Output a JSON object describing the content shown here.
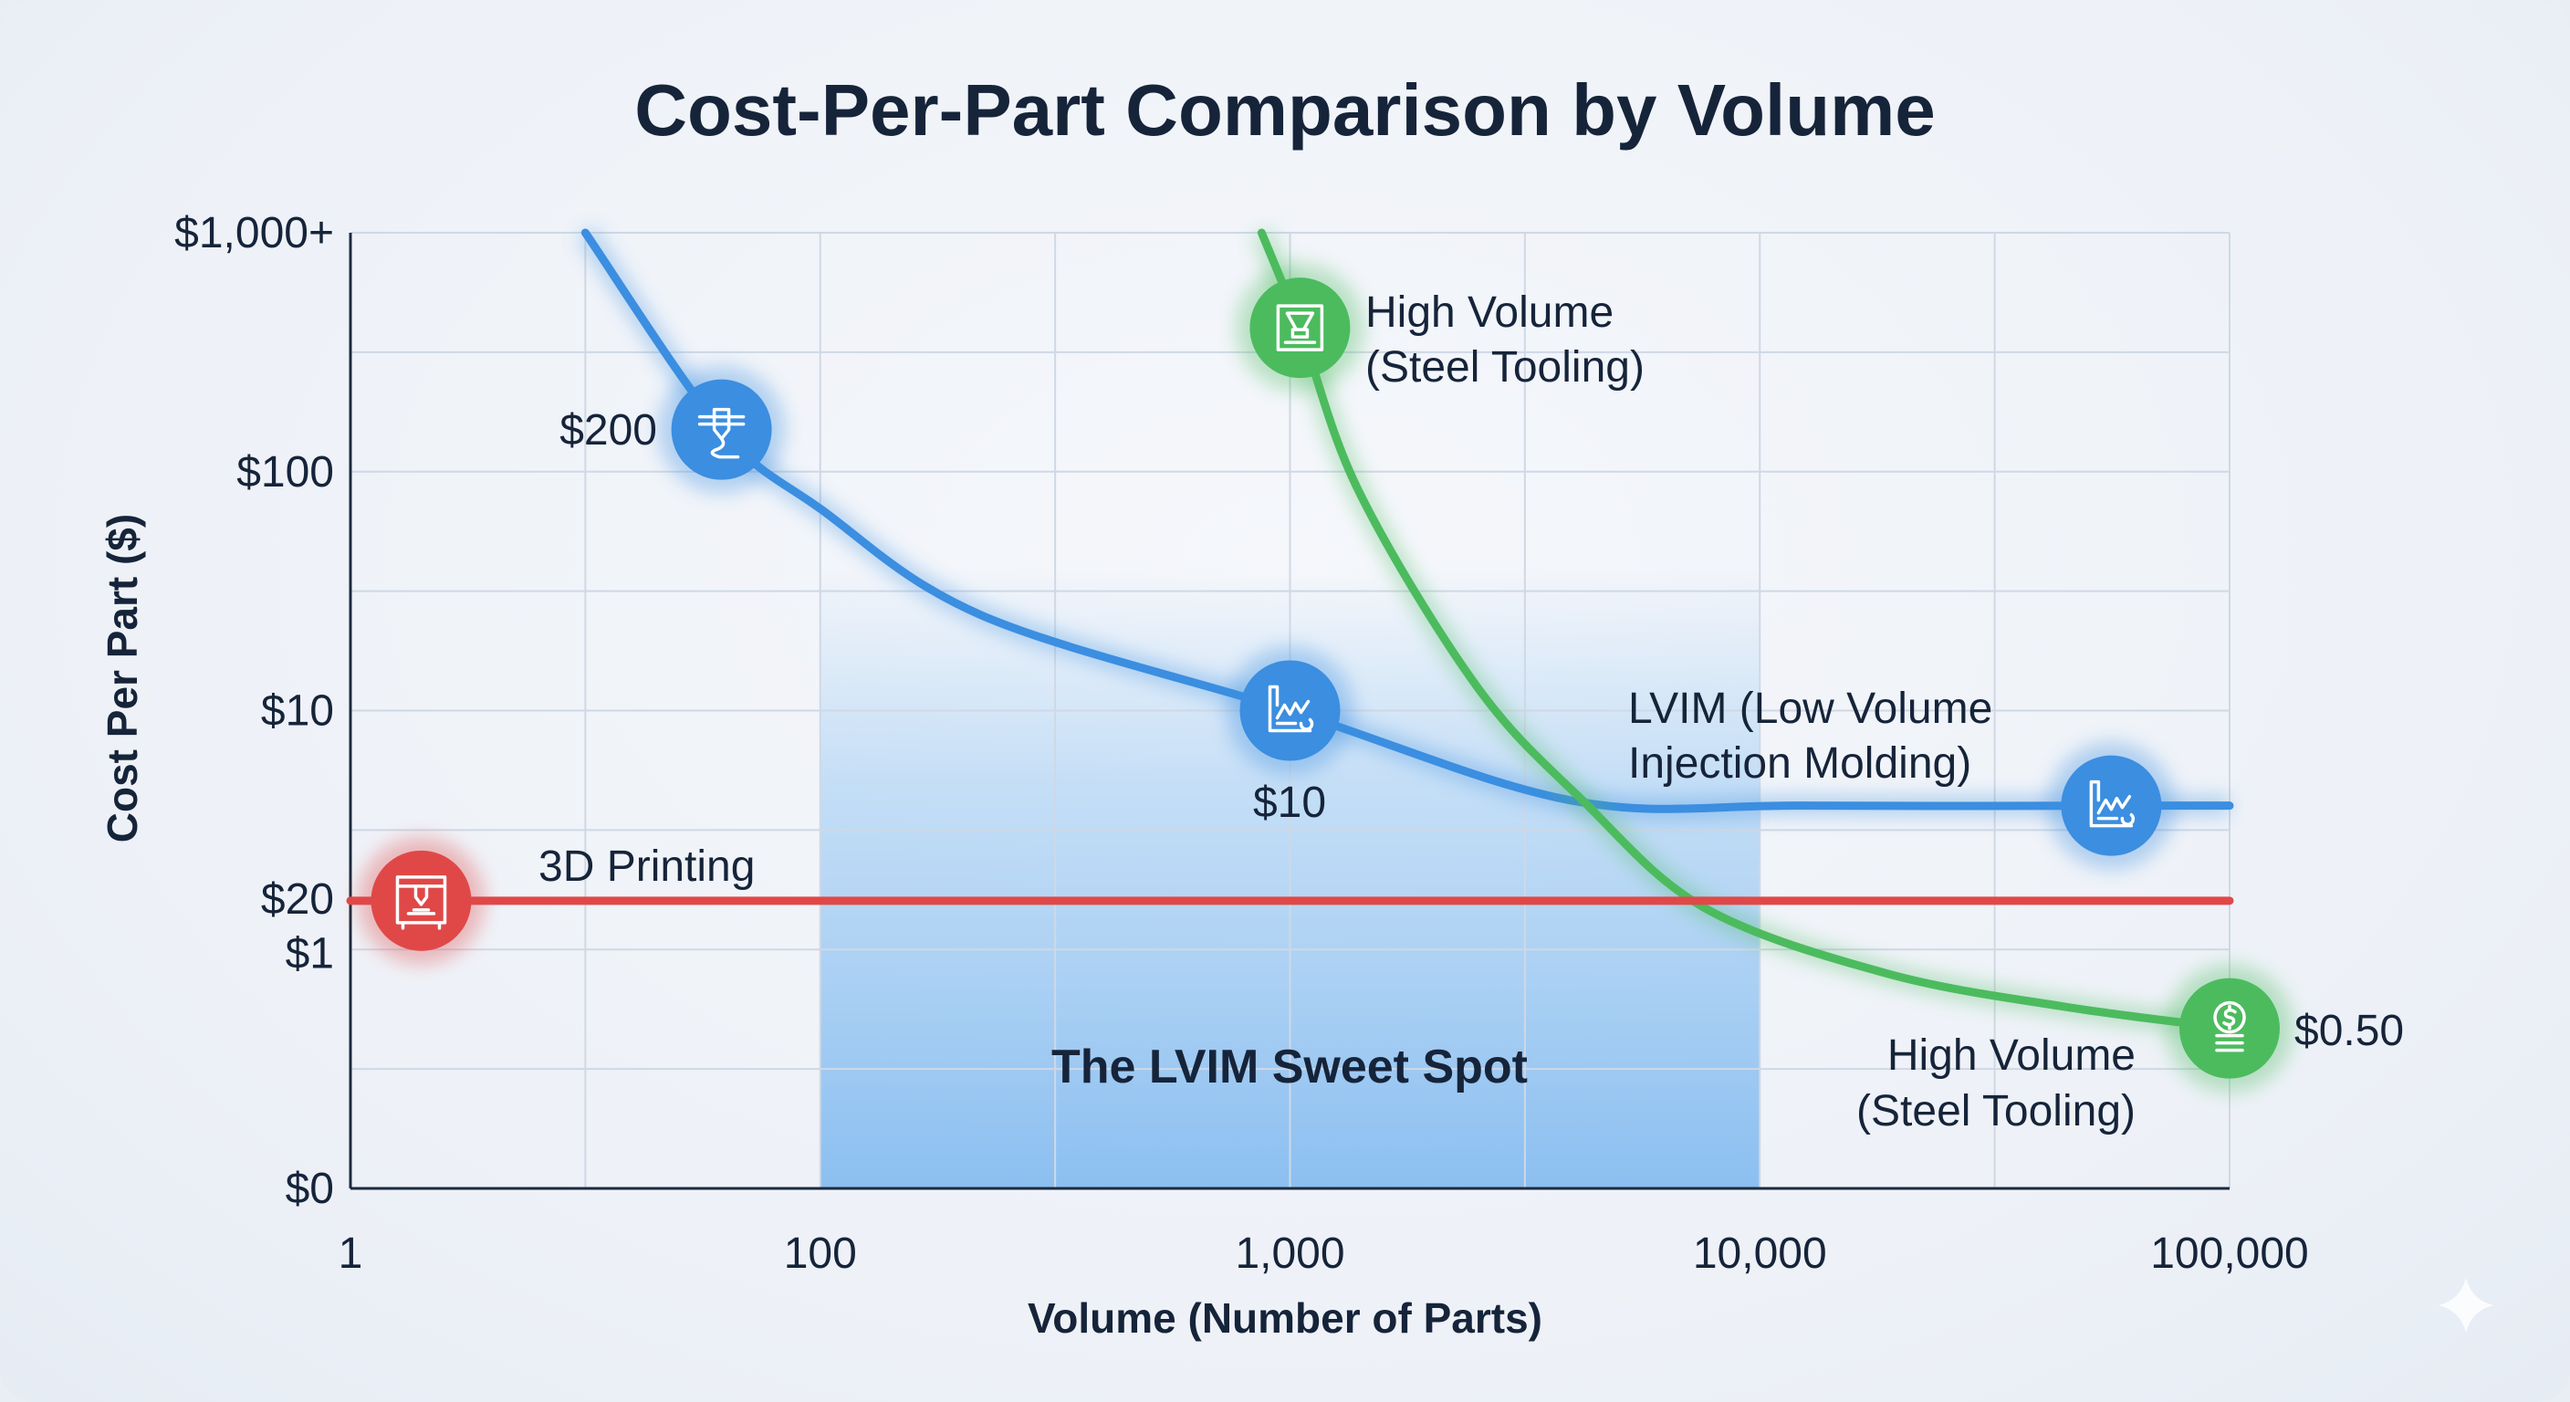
{
  "chart_data": {
    "type": "line",
    "title": "Cost-Per-Part Comparison by Volume",
    "xlabel": "Volume (Number of Parts)",
    "ylabel": "Cost Per Part ($)",
    "x_scale": "log",
    "y_scale": "log",
    "xlim": [
      1,
      100000
    ],
    "ylim": [
      0,
      1000
    ],
    "grid": true,
    "x_ticks": [
      {
        "value": 1,
        "label": "1"
      },
      {
        "value": 100,
        "label": "100"
      },
      {
        "value": 1000,
        "label": "1,000"
      },
      {
        "value": 10000,
        "label": "10,000"
      },
      {
        "value": 100000,
        "label": "100,000"
      }
    ],
    "y_ticks": [
      {
        "value": 1000,
        "label": "$1,000+"
      },
      {
        "value": 100,
        "label": "$100"
      },
      {
        "value": 10,
        "label": "$10"
      },
      {
        "value": 1,
        "label": "$1"
      },
      {
        "value": 0,
        "label": "$0"
      }
    ],
    "y_extra_tick_label": "$20",
    "series": [
      {
        "color": "#3b8ee0",
        "x": [
          10,
          38,
          100,
          221,
          1000,
          3981,
          12300,
          56000,
          100000
        ],
        "y": [
          1000,
          150,
          70,
          25,
          10,
          4.2,
          4,
          4,
          4
        ]
      },
      {
        "color": "#4cbb5e",
        "x": [
          870,
          1050,
          1400,
          2500,
          4200,
          7600,
          18600,
          44700,
          100000
        ],
        "y": [
          1000,
          400,
          83,
          12.6,
          4.2,
          1.5,
          0.9,
          0.76,
          0.67
        ]
      },
      {
        "color": "#e04848",
        "x": [
          1,
          100000
        ],
        "y": [
          1.6,
          1.6
        ]
      }
    ],
    "markers": [
      {
        "series": 0,
        "x": 38,
        "y": 150,
        "icon": "3d-printer-nozzle-icon"
      },
      {
        "series": 0,
        "x": 1000,
        "y": 10,
        "icon": "factory-icon"
      },
      {
        "series": 0,
        "x": 56000,
        "y": 4,
        "icon": "factory-icon"
      },
      {
        "series": 1,
        "x": 1050,
        "y": 400,
        "icon": "injection-mold-icon"
      },
      {
        "series": 1,
        "x": 100000,
        "y": 0.67,
        "icon": "coins-icon"
      },
      {
        "series": 2,
        "x": 2,
        "y": 1.6,
        "icon": "3d-printer-box-icon"
      }
    ],
    "shaded_region": {
      "label": "The LVIM Sweet Spot",
      "x": [
        100,
        10000
      ],
      "color": "#8cc2f2"
    },
    "annotations": {
      "printing_price": "$200",
      "lvim_price": "$10",
      "steel_top_line1": "High Volume",
      "steel_top_line2": "(Steel Tooling)",
      "lvim_line1": "LVIM (Low Volume",
      "lvim_line2": "Injection Molding)",
      "printing_label": "3D Printing",
      "steel_bottom_line1": "High Volume",
      "steel_bottom_line2": "(Steel Tooling)",
      "steel_price": "$0.50"
    }
  }
}
